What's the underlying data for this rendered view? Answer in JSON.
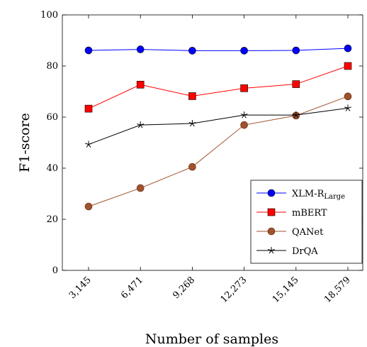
{
  "chart_data": {
    "type": "line",
    "xlabel": "Number of samples",
    "ylabel": "F1-score",
    "categories": [
      "3,145",
      "6,471",
      "9,268",
      "12,273",
      "15,145",
      "18,579"
    ],
    "ylim": [
      0,
      100
    ],
    "yticks": [
      0,
      20,
      40,
      60,
      80,
      100
    ],
    "grid": false,
    "legend_position": "bottom-right",
    "series": [
      {
        "name": "XLM-R",
        "name_sub": "Large",
        "color": "#0000ff",
        "marker": "circle",
        "values": [
          86.1,
          86.5,
          86.0,
          86.0,
          86.1,
          86.9
        ]
      },
      {
        "name": "mBERT",
        "color": "#ff0000",
        "marker": "square",
        "values": [
          63.3,
          72.7,
          68.2,
          71.3,
          72.9,
          80.0
        ]
      },
      {
        "name": "QANet",
        "color": "#a0522d",
        "marker": "circle-brown",
        "values": [
          25.0,
          32.2,
          40.5,
          56.9,
          60.6,
          68.1
        ]
      },
      {
        "name": "DrQA",
        "color": "#000000",
        "marker": "star",
        "values": [
          49.3,
          56.9,
          57.5,
          60.8,
          60.8,
          63.5
        ]
      }
    ]
  }
}
